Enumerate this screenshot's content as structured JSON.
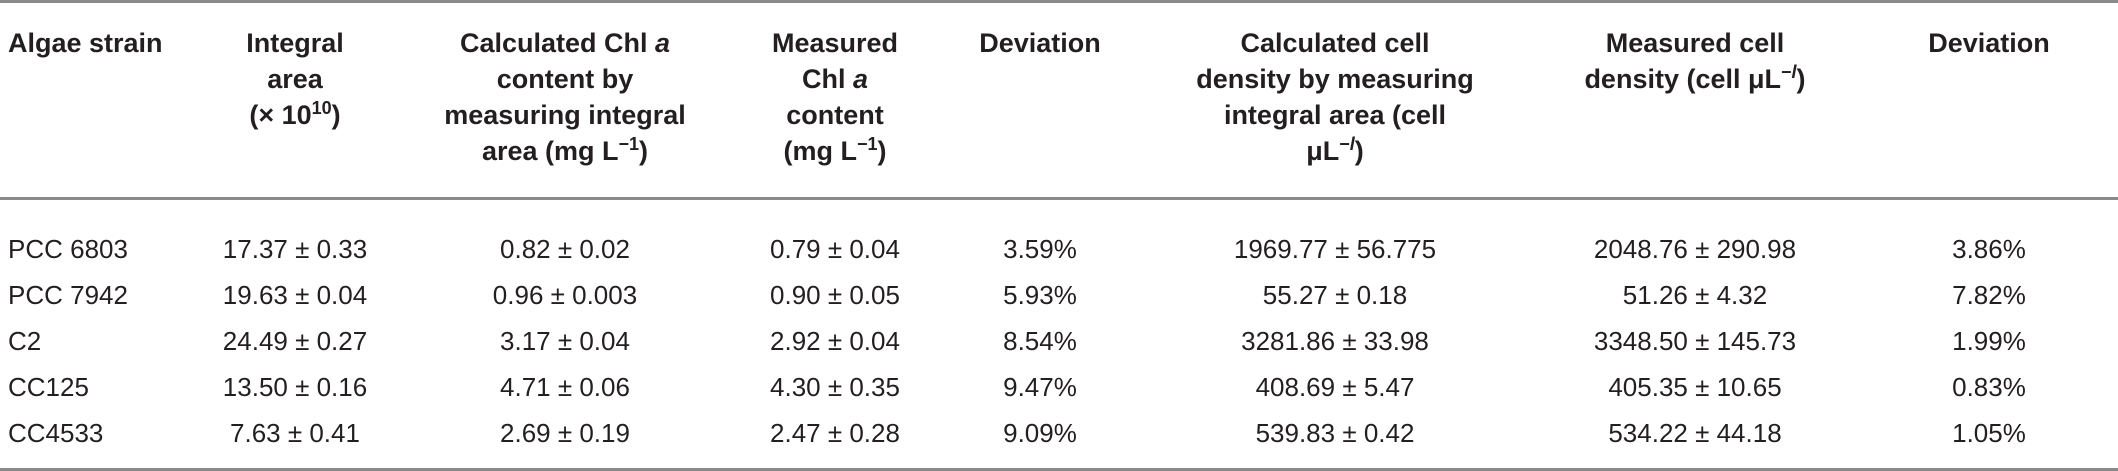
{
  "table": {
    "headers": [
      {
        "lines": [
          "Algae strain"
        ]
      },
      {
        "lines": [
          "Integral",
          "area",
          "(× 10<sup>10</sup>)"
        ]
      },
      {
        "lines": [
          "Calculated Chl <span class=\"it\">a</span>",
          "content by",
          "measuring integral",
          "area (mg L<sup>−1</sup>)"
        ]
      },
      {
        "lines": [
          "Measured",
          "Chl <span class=\"it\">a</span>",
          "content",
          "(mg L<sup>−1</sup>)"
        ]
      },
      {
        "lines": [
          "Deviation"
        ]
      },
      {
        "lines": [
          "Calculated cell",
          "density by measuring",
          "integral area (cell",
          "μL<sup>−<span class=\"it\">l</span></sup>)"
        ]
      },
      {
        "lines": [
          "Measured cell",
          "density (cell μL<sup>−<span class=\"it\">l</span></sup>)"
        ]
      },
      {
        "lines": [
          "Deviation"
        ]
      }
    ],
    "rows": [
      [
        "PCC 6803",
        "17.37 ± 0.33",
        "0.82 ± 0.02",
        "0.79 ± 0.04",
        "3.59%",
        "1969.77 ± 56.775",
        "2048.76 ± 290.98",
        "3.86%"
      ],
      [
        "PCC 7942",
        "19.63 ± 0.04",
        "0.96 ± 0.003",
        "0.90 ± 0.05",
        "5.93%",
        "55.27 ± 0.18",
        "51.26 ± 4.32",
        "7.82%"
      ],
      [
        "C2",
        "24.49 ± 0.27",
        "3.17 ± 0.04",
        "2.92 ± 0.04",
        "8.54%",
        "3281.86 ± 33.98",
        "3348.50 ± 145.73",
        "1.99%"
      ],
      [
        "CC125",
        "13.50 ± 0.16",
        "4.71 ± 0.06",
        "4.30 ± 0.35",
        "9.47%",
        "408.69 ± 5.47",
        "405.35 ± 10.65",
        "0.83%"
      ],
      [
        "CC4533",
        "7.63 ± 0.41",
        "2.69 ± 0.19",
        "2.47 ± 0.28",
        "9.09%",
        "539.83 ± 0.42",
        "534.22 ± 44.18",
        "1.05%"
      ]
    ]
  }
}
